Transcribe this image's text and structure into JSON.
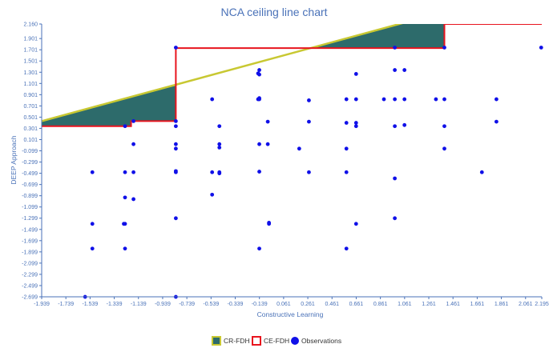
{
  "chart_data": {
    "type": "scatter",
    "title": "NCA ceiling line chart",
    "xlabel": "Constructive Learning",
    "ylabel": "DEEP Approach",
    "xlim": [
      -1.939,
      2.195
    ],
    "ylim": [
      -2.699,
      2.16
    ],
    "x_ticks": [
      "-1.939",
      "-1.739",
      "-1.539",
      "-1.339",
      "-1.139",
      "-0.939",
      "-0.739",
      "-0.539",
      "-0.339",
      "-0.139",
      "0.061",
      "0.261",
      "0.461",
      "0.661",
      "0.861",
      "1.061",
      "1.261",
      "1.461",
      "1.661",
      "1.861",
      "2.061",
      "2.195"
    ],
    "y_ticks": [
      "2.160",
      "1.901",
      "1.701",
      "1.501",
      "1.301",
      "1.101",
      "0.901",
      "0.701",
      "0.501",
      "0.301",
      "0.101",
      "-0.099",
      "-0.299",
      "-0.499",
      "-0.699",
      "-0.899",
      "-1.099",
      "-1.299",
      "-1.499",
      "-1.699",
      "-1.899",
      "-2.099",
      "-2.299",
      "-2.499",
      "-2.699"
    ],
    "grid": false,
    "legend_position": "bottom",
    "series": [
      {
        "name": "CR-FDH",
        "type": "area",
        "line_color": "#c8c832",
        "fill_color": "#2d6b6b",
        "line": [
          [
            -1.939,
            0.43
          ],
          [
            1.461,
            2.42
          ]
        ]
      },
      {
        "name": "CE-FDH",
        "type": "step",
        "line_color": "#e8141e",
        "points": [
          [
            -1.939,
            0.34
          ],
          [
            -1.2,
            0.34
          ],
          [
            -1.2,
            0.43
          ],
          [
            -0.83,
            0.43
          ],
          [
            -0.83,
            1.73
          ],
          [
            1.39,
            1.73
          ],
          [
            1.39,
            2.16
          ],
          [
            2.195,
            2.16
          ]
        ]
      },
      {
        "name": "Observations",
        "type": "scatter",
        "color": "#1010e8",
        "points": [
          [
            -1.58,
            -2.7
          ],
          [
            -0.83,
            -2.7
          ],
          [
            -1.52,
            -0.48
          ],
          [
            -1.25,
            -0.48
          ],
          [
            -1.18,
            -0.48
          ],
          [
            -0.83,
            -0.48
          ],
          [
            -0.83,
            -0.46
          ],
          [
            -0.53,
            -0.48
          ],
          [
            -0.47,
            -0.48
          ],
          [
            -0.47,
            -0.5
          ],
          [
            -0.14,
            -0.47
          ],
          [
            0.27,
            -0.48
          ],
          [
            0.58,
            -0.48
          ],
          [
            0.98,
            -0.59
          ],
          [
            1.7,
            -0.48
          ],
          [
            -1.25,
            -0.93
          ],
          [
            -1.18,
            -0.96
          ],
          [
            -0.53,
            -0.88
          ],
          [
            -0.83,
            -1.3
          ],
          [
            0.98,
            -1.3
          ],
          [
            -1.52,
            -1.4
          ],
          [
            -1.25,
            -1.4
          ],
          [
            -1.26,
            -1.4
          ],
          [
            -0.06,
            -1.4
          ],
          [
            -0.06,
            -1.38
          ],
          [
            0.66,
            -1.4
          ],
          [
            -1.52,
            -1.84
          ],
          [
            -1.25,
            -1.84
          ],
          [
            -0.14,
            -1.84
          ],
          [
            0.58,
            -1.84
          ],
          [
            -1.18,
            0.43
          ],
          [
            -1.25,
            0.34
          ],
          [
            -0.83,
            0.43
          ],
          [
            -0.83,
            0.34
          ],
          [
            -0.47,
            0.34
          ],
          [
            -0.07,
            0.42
          ],
          [
            0.27,
            0.42
          ],
          [
            0.58,
            0.4
          ],
          [
            0.66,
            0.4
          ],
          [
            0.66,
            0.34
          ],
          [
            0.98,
            0.34
          ],
          [
            1.06,
            0.36
          ],
          [
            1.39,
            0.34
          ],
          [
            1.82,
            0.42
          ],
          [
            -1.18,
            0.02
          ],
          [
            -0.83,
            0.02
          ],
          [
            -0.83,
            -0.06
          ],
          [
            -0.47,
            0.02
          ],
          [
            -0.47,
            -0.04
          ],
          [
            -0.14,
            0.02
          ],
          [
            -0.07,
            0.02
          ],
          [
            0.19,
            -0.06
          ],
          [
            0.58,
            -0.06
          ],
          [
            1.39,
            -0.06
          ],
          [
            -0.53,
            0.82
          ],
          [
            -0.15,
            0.82
          ],
          [
            -0.14,
            0.82
          ],
          [
            -0.14,
            0.84
          ],
          [
            0.27,
            0.8
          ],
          [
            0.58,
            0.82
          ],
          [
            0.66,
            0.82
          ],
          [
            0.89,
            0.82
          ],
          [
            0.98,
            0.82
          ],
          [
            1.06,
            0.82
          ],
          [
            1.32,
            0.82
          ],
          [
            1.39,
            0.82
          ],
          [
            1.82,
            0.82
          ],
          [
            -0.14,
            1.26
          ],
          [
            -0.15,
            1.28
          ],
          [
            -0.14,
            1.34
          ],
          [
            0.66,
            1.27
          ],
          [
            0.98,
            1.34
          ],
          [
            1.06,
            1.34
          ],
          [
            -0.83,
            1.74
          ],
          [
            0.98,
            1.74
          ],
          [
            1.39,
            1.74
          ],
          [
            2.19,
            1.74
          ]
        ]
      }
    ]
  }
}
